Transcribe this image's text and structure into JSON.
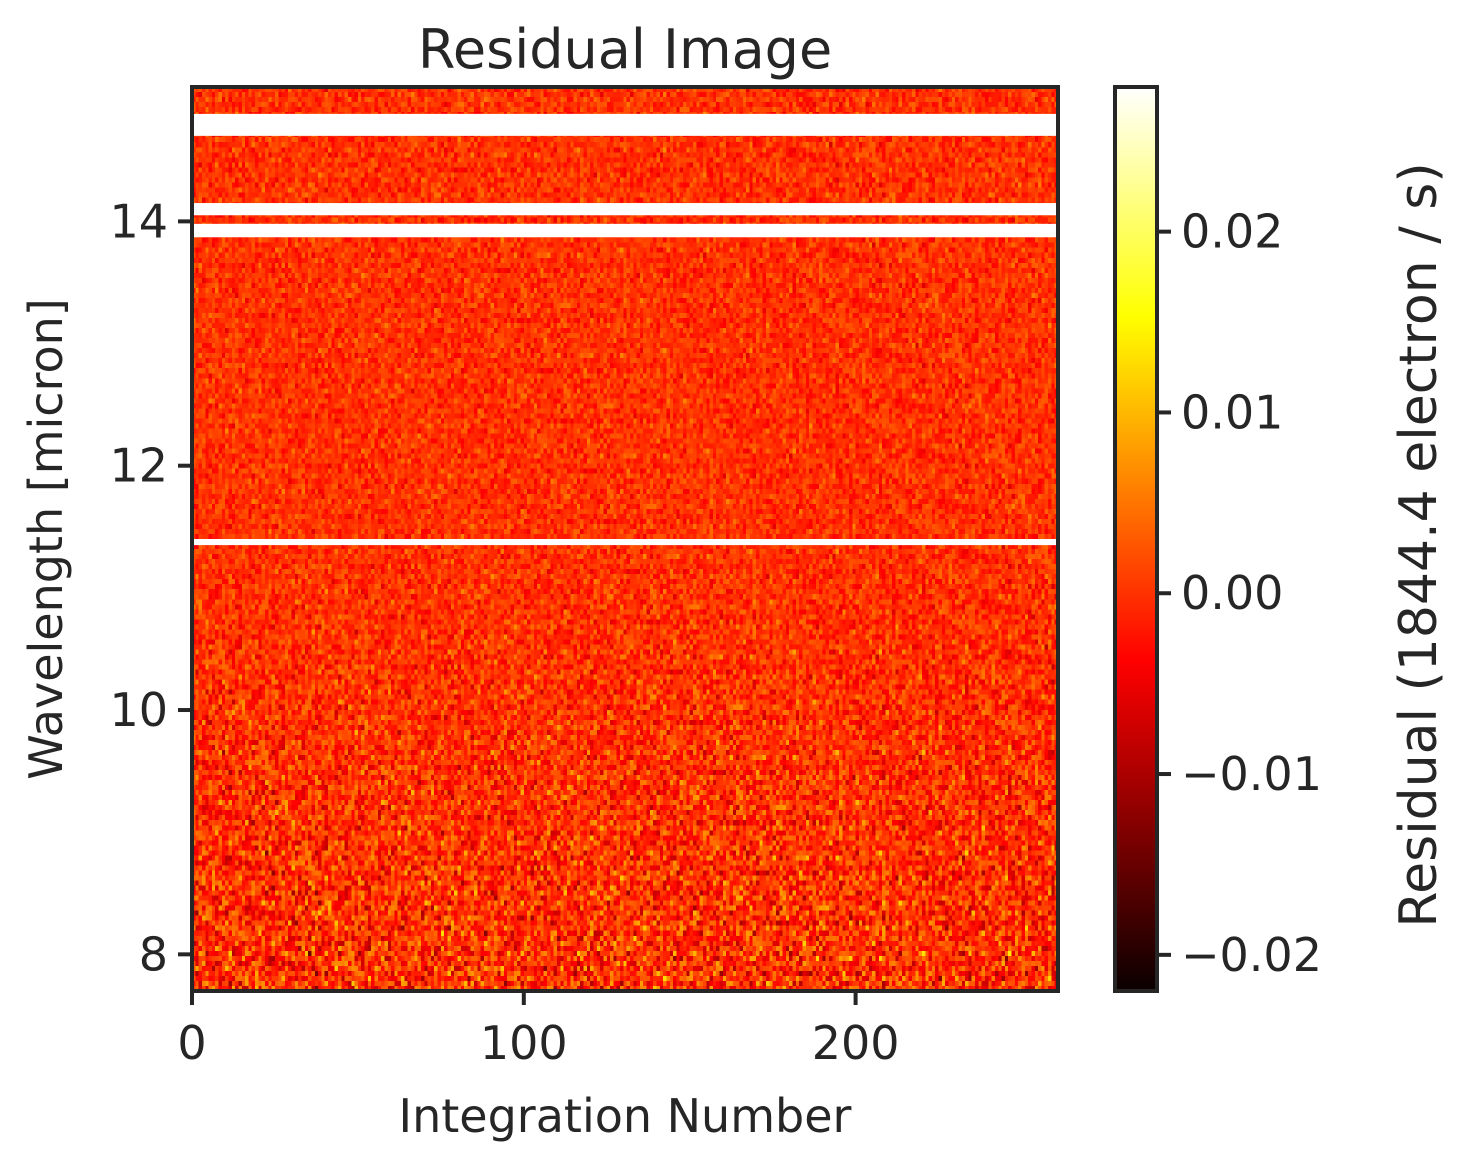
{
  "chart_data": {
    "type": "heatmap",
    "title": "Residual Image",
    "xlabel": "Integration Number",
    "ylabel": "Wavelength [micron]",
    "colorbar_label": "Residual (1844.4 electron / s)",
    "colormap": "hot",
    "x_range": [
      0,
      261
    ],
    "y_range": [
      7.7,
      15.1
    ],
    "x_ticks": [
      0,
      100,
      200
    ],
    "x_tick_labels": [
      "0",
      "100",
      "200"
    ],
    "y_ticks": [
      8,
      10,
      12,
      14
    ],
    "y_tick_labels": [
      "8",
      "10",
      "12",
      "14"
    ],
    "color_range": [
      -0.022,
      0.028
    ],
    "colorbar_ticks": [
      -0.02,
      -0.01,
      0.0,
      0.01,
      0.02
    ],
    "colorbar_tick_labels": [
      "−0.02",
      "−0.01",
      "0.00",
      "0.01",
      "0.02"
    ],
    "masked_wavelength_bands": [
      [
        14.7,
        14.88
      ],
      [
        13.87,
        13.98
      ],
      [
        14.05,
        14.15
      ],
      [
        11.35,
        11.4
      ]
    ],
    "notes_visible": "Values mostly near 0.00 with noise; slightly larger scatter at short wavelengths"
  },
  "colors": {
    "axis": "#262626",
    "background": "#ffffff",
    "mask": "#ffffff"
  }
}
